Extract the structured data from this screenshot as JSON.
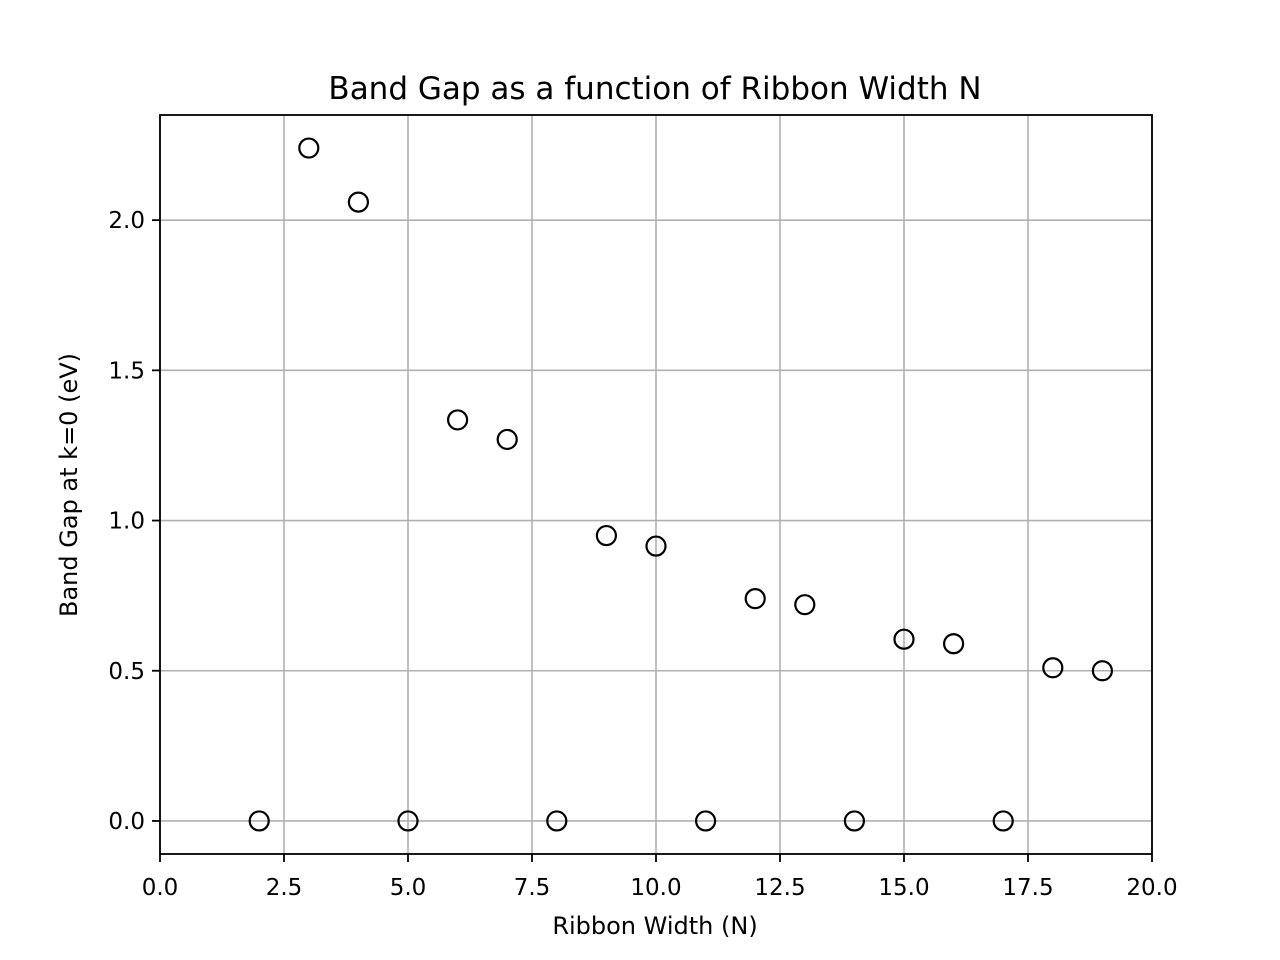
{
  "chart_data": {
    "type": "scatter",
    "title": "Band Gap as a function of Ribbon Width N",
    "xlabel": "Ribbon Width (N)",
    "ylabel": "Band Gap at k=0 (eV)",
    "xlim": [
      0,
      20
    ],
    "ylim": [
      -0.11,
      2.35
    ],
    "xticks": [
      0,
      2.5,
      5,
      7.5,
      10,
      12.5,
      15,
      17.5,
      20
    ],
    "xtick_labels": [
      "0.0",
      "2.5",
      "5.0",
      "7.5",
      "10.0",
      "12.5",
      "15.0",
      "17.5",
      "20.0"
    ],
    "yticks": [
      0,
      0.5,
      1,
      1.5,
      2
    ],
    "ytick_labels": [
      "0.0",
      "0.5",
      "1.0",
      "1.5",
      "2.0"
    ],
    "grid": true,
    "marker": "open-circle",
    "marker_color": "#000000",
    "x": [
      2,
      3,
      4,
      5,
      6,
      7,
      8,
      9,
      10,
      11,
      12,
      13,
      14,
      15,
      16,
      17,
      18,
      19
    ],
    "y": [
      0.0,
      2.24,
      2.06,
      0.0,
      1.335,
      1.27,
      0.0,
      0.95,
      0.915,
      0.0,
      0.74,
      0.72,
      0.0,
      0.605,
      0.59,
      0.0,
      0.51,
      0.5
    ]
  }
}
